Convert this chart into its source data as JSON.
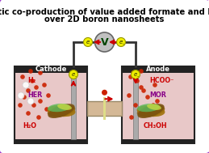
{
  "title_line1": "Electrolytic co-production of value added formate and hydrogen",
  "title_line2": "over 2D boron nanosheets",
  "bg_color": "#ffffff",
  "border_color": "#9933cc",
  "cell_bg": "#e8c8c8",
  "cell_border": "#222222",
  "cathode_label": "Cathode",
  "anode_label": "Anode",
  "cathode_species_h2": "H₂",
  "cathode_species_her": "HER",
  "cathode_species_h2o": "H₂O",
  "anode_species_hcoo": "HCOO⁻",
  "anode_species_mor": "MOR",
  "anode_species_ch3oh": "CH₃OH",
  "wire_color": "#333333",
  "voltmeter_color": "#aaaaaa",
  "voltmeter_label": "V",
  "electron_color": "#eeee00",
  "arrow_color": "#cc0000",
  "red_dot_color": "#cc2200",
  "title_fontsize": 7.2,
  "label_fontsize": 6.0,
  "species_fontsize": 5.8
}
